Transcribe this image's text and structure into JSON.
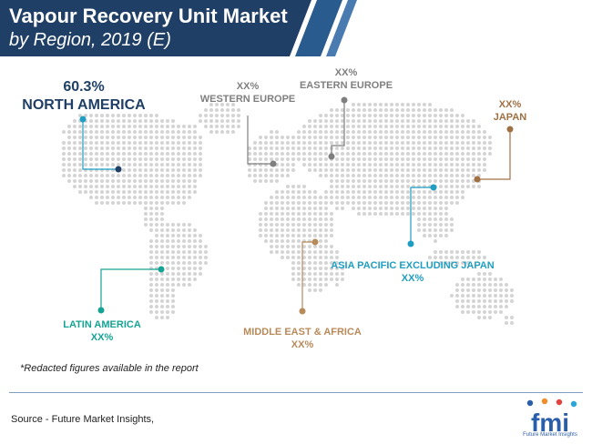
{
  "header": {
    "title_line1": "Vapour Recovery Unit Market",
    "title_line2": "by Region, 2019 (E)",
    "colors": {
      "banner_dark": "#1f3f66",
      "banner_mid": "#2a5b8f"
    }
  },
  "regions": {
    "north_america": {
      "value": "60.3%",
      "name": "NORTH AMERICA",
      "color": "#1f3f66"
    },
    "western_europe": {
      "value": "XX%",
      "name": "WESTERN EUROPE",
      "color": "#7f7f7f"
    },
    "eastern_europe": {
      "value": "XX%",
      "name": "EASTERN EUROPE",
      "color": "#7f7f7f"
    },
    "japan": {
      "value": "XX%",
      "name": "JAPAN",
      "color": "#a07043"
    },
    "asia_pacific": {
      "value": "XX%",
      "name": "ASIA PACIFIC EXCLUDING JAPAN",
      "color": "#1f9ec2"
    },
    "latin_america": {
      "value": "XX%",
      "name": "LATIN AMERICA",
      "color": "#16a393"
    },
    "mea": {
      "value": "XX%",
      "name": "MIDDLE EAST & AFRICA",
      "color": "#b88a5a"
    }
  },
  "note": "*Redacted figures available in the report",
  "source": "Source - Future Market Insights,",
  "logo": {
    "text": "fmi",
    "subtitle": "Future Market Insights"
  },
  "map": {
    "dot_color": "#d4d4d4"
  }
}
